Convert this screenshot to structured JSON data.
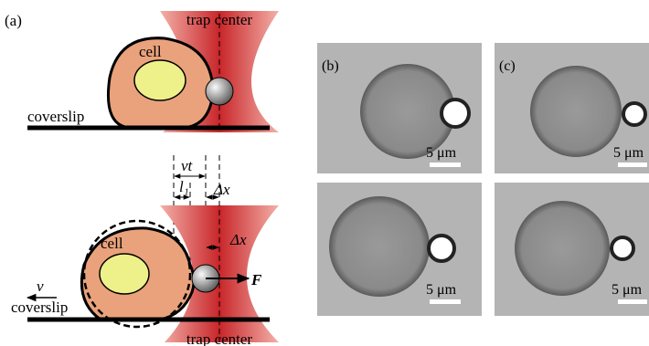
{
  "panel_a": {
    "label": "(a)",
    "top": {
      "trap_label": "trap center",
      "cell_label": "cell",
      "surface_label": "coverslip"
    },
    "dimensions": {
      "vt": "vt",
      "l": "l₁",
      "dx": "Δx"
    },
    "bottom": {
      "cell_label": "cell",
      "surface_label": "coverslip",
      "trap_label": "trap center",
      "velocity": "v",
      "force": "F",
      "displacement": "Δx"
    }
  },
  "panel_b": {
    "label": "(b)",
    "scale_bars": [
      "5 μm",
      "5 μm"
    ]
  },
  "panel_c": {
    "label": "(c)",
    "scale_bars": [
      "5 μm",
      "5 μm"
    ]
  }
}
